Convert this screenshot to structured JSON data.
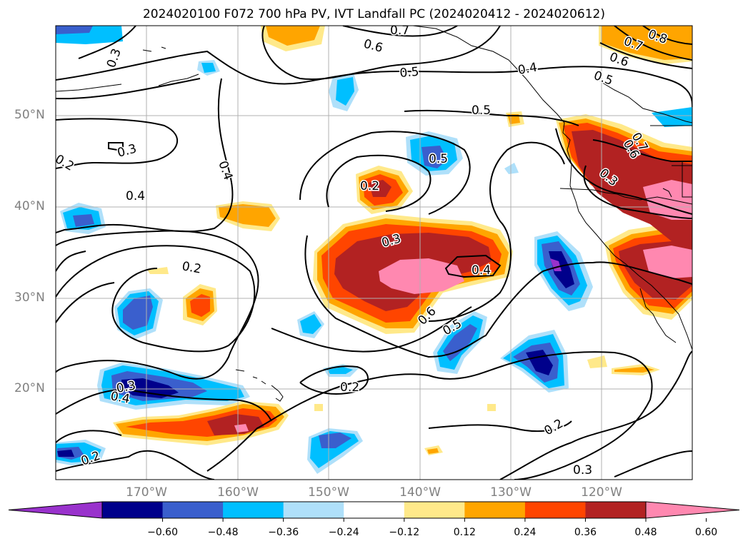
{
  "title": "2024020100 F072 700 hPa PV, IVT Landfall PC (2024020412 - 2024020612)",
  "lat_labels": [
    "50°N",
    "40°N",
    "30°N",
    "20°N"
  ],
  "lon_labels": [
    "170°W",
    "160°W",
    "150°W",
    "140°W",
    "130°W",
    "120°W"
  ],
  "colorbar": {
    "colors": [
      "#9932cc",
      "#00008b",
      "#3a5fcd",
      "#00bfff",
      "#afe0fa",
      "#ffffff",
      "#ffe98a",
      "#ffa500",
      "#ff4500",
      "#b22222",
      "#ff88b0"
    ],
    "ticks": [
      "−0.60",
      "−0.48",
      "−0.36",
      "−0.24",
      "−0.12",
      "0.12",
      "0.24",
      "0.36",
      "0.48",
      "0.60"
    ]
  },
  "contour_labels": [
    "0.7",
    "0.6",
    "0.5",
    "0.4",
    "0.5",
    "0.5",
    "0.3",
    "0.2",
    "0.4",
    "0.4",
    "0.2",
    "0.3",
    "0.4",
    "0.6",
    "0.5",
    "0.3",
    "0.2",
    "0.3",
    "0.4",
    "0.2",
    "0.2",
    "0.3",
    "0.2",
    "0.8",
    "0.7",
    "0.6",
    "0.5",
    "0.7",
    "0.6",
    "0.3"
  ]
}
